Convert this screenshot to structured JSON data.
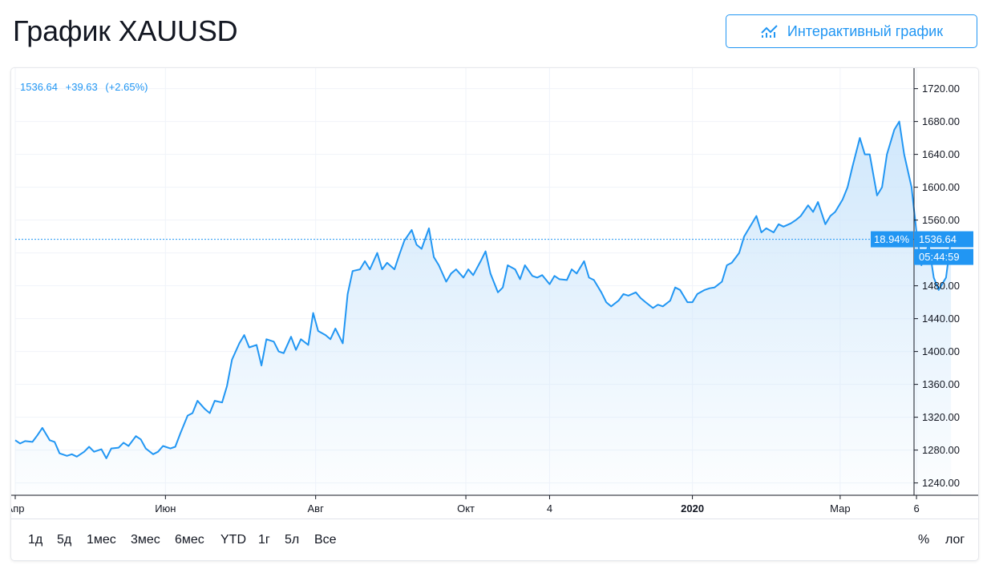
{
  "header": {
    "title": "График XAUUSD",
    "interactive_button_label": "Интерактивный график"
  },
  "legend": {
    "price": "1536.64",
    "change": "+39.63",
    "change_pct": "(+2.65%)"
  },
  "price_tag": {
    "percent": "18.94%",
    "price": "1536.64",
    "countdown": "05:44:59"
  },
  "range_buttons": [
    "1д",
    "5д",
    "1мес",
    "3мес",
    "6мес",
    "YTD",
    "1г",
    "5л",
    "Все"
  ],
  "scale_buttons": [
    "%",
    "лог"
  ],
  "colors": {
    "accent": "#2196f3",
    "line": "#2196f3",
    "area_top": "#cde6fb",
    "grid": "#f0f3fa"
  },
  "chart_data": {
    "type": "area",
    "symbol": "XAUUSD",
    "ylim": [
      1225,
      1745
    ],
    "yticks": [
      1240,
      1280,
      1320,
      1360,
      1400,
      1440,
      1480,
      1520,
      1560,
      1600,
      1640,
      1680,
      1720
    ],
    "ytick_labels": [
      "1240.00",
      "1280.00",
      "1320.00",
      "1360.00",
      "1400.00",
      "1440.00",
      "1480.00",
      "1520.00",
      "1560.00",
      "1600.00",
      "1640.00",
      "1680.00",
      "1720.00"
    ],
    "xlim": [
      "2019-04-01",
      "2020-03-31"
    ],
    "xticks": [
      {
        "date": "2019-04-01",
        "label": "Апр"
      },
      {
        "date": "2019-06-01",
        "label": "Июн"
      },
      {
        "date": "2019-08-01",
        "label": "Авг"
      },
      {
        "date": "2019-10-01",
        "label": "Окт"
      },
      {
        "date": "2019-11-04",
        "label": "4"
      },
      {
        "date": "2020-01-01",
        "label": "2020"
      },
      {
        "date": "2020-03-01",
        "label": "Мар"
      },
      {
        "date": "2020-04-01",
        "label": "6"
      }
    ],
    "last_price": 1536.64,
    "grid": true,
    "legend_position": "top-left",
    "series": [
      {
        "values": [
          [
            "2019-04-01",
            1292
          ],
          [
            "2019-04-03",
            1288
          ],
          [
            "2019-04-05",
            1291
          ],
          [
            "2019-04-08",
            1290
          ],
          [
            "2019-04-10",
            1298
          ],
          [
            "2019-04-12",
            1307
          ],
          [
            "2019-04-15",
            1292
          ],
          [
            "2019-04-17",
            1290
          ],
          [
            "2019-04-19",
            1276
          ],
          [
            "2019-04-22",
            1273
          ],
          [
            "2019-04-24",
            1275
          ],
          [
            "2019-04-26",
            1272
          ],
          [
            "2019-04-29",
            1278
          ],
          [
            "2019-05-01",
            1284
          ],
          [
            "2019-05-03",
            1278
          ],
          [
            "2019-05-06",
            1281
          ],
          [
            "2019-05-08",
            1270
          ],
          [
            "2019-05-10",
            1282
          ],
          [
            "2019-05-13",
            1283
          ],
          [
            "2019-05-15",
            1289
          ],
          [
            "2019-05-17",
            1285
          ],
          [
            "2019-05-20",
            1297
          ],
          [
            "2019-05-22",
            1293
          ],
          [
            "2019-05-24",
            1282
          ],
          [
            "2019-05-27",
            1275
          ],
          [
            "2019-05-29",
            1278
          ],
          [
            "2019-05-31",
            1285
          ],
          [
            "2019-06-03",
            1282
          ],
          [
            "2019-06-05",
            1284
          ],
          [
            "2019-06-07",
            1300
          ],
          [
            "2019-06-10",
            1322
          ],
          [
            "2019-06-12",
            1325
          ],
          [
            "2019-06-14",
            1340
          ],
          [
            "2019-06-17",
            1330
          ],
          [
            "2019-06-19",
            1325
          ],
          [
            "2019-06-21",
            1340
          ],
          [
            "2019-06-24",
            1338
          ],
          [
            "2019-06-26",
            1358
          ],
          [
            "2019-06-28",
            1390
          ],
          [
            "2019-07-01",
            1410
          ],
          [
            "2019-07-03",
            1420
          ],
          [
            "2019-07-05",
            1405
          ],
          [
            "2019-07-08",
            1408
          ],
          [
            "2019-07-10",
            1383
          ],
          [
            "2019-07-12",
            1415
          ],
          [
            "2019-07-15",
            1412
          ],
          [
            "2019-07-17",
            1400
          ],
          [
            "2019-07-19",
            1398
          ],
          [
            "2019-07-22",
            1418
          ],
          [
            "2019-07-24",
            1402
          ],
          [
            "2019-07-26",
            1415
          ],
          [
            "2019-07-29",
            1408
          ],
          [
            "2019-07-31",
            1447
          ],
          [
            "2019-08-02",
            1425
          ],
          [
            "2019-08-05",
            1420
          ],
          [
            "2019-08-07",
            1415
          ],
          [
            "2019-08-09",
            1428
          ],
          [
            "2019-08-12",
            1410
          ],
          [
            "2019-08-14",
            1470
          ],
          [
            "2019-08-16",
            1498
          ],
          [
            "2019-08-19",
            1500
          ],
          [
            "2019-08-21",
            1510
          ],
          [
            "2019-08-23",
            1500
          ],
          [
            "2019-08-26",
            1520
          ],
          [
            "2019-08-28",
            1500
          ],
          [
            "2019-08-30",
            1508
          ],
          [
            "2019-09-02",
            1500
          ],
          [
            "2019-09-04",
            1518
          ],
          [
            "2019-09-06",
            1535
          ],
          [
            "2019-09-09",
            1548
          ],
          [
            "2019-09-11",
            1530
          ],
          [
            "2019-09-13",
            1525
          ],
          [
            "2019-09-16",
            1550
          ],
          [
            "2019-09-18",
            1515
          ],
          [
            "2019-09-20",
            1505
          ],
          [
            "2019-09-23",
            1485
          ],
          [
            "2019-09-25",
            1495
          ],
          [
            "2019-09-27",
            1500
          ],
          [
            "2019-09-30",
            1490
          ],
          [
            "2019-10-02",
            1500
          ],
          [
            "2019-10-04",
            1493
          ],
          [
            "2019-10-07",
            1510
          ],
          [
            "2019-10-09",
            1522
          ],
          [
            "2019-10-11",
            1495
          ],
          [
            "2019-10-14",
            1472
          ],
          [
            "2019-10-16",
            1478
          ],
          [
            "2019-10-18",
            1505
          ],
          [
            "2019-10-21",
            1500
          ],
          [
            "2019-10-23",
            1488
          ],
          [
            "2019-10-25",
            1505
          ],
          [
            "2019-10-28",
            1492
          ],
          [
            "2019-10-30",
            1490
          ],
          [
            "2019-11-01",
            1493
          ],
          [
            "2019-11-04",
            1482
          ],
          [
            "2019-11-06",
            1492
          ],
          [
            "2019-11-08",
            1488
          ],
          [
            "2019-11-11",
            1487
          ],
          [
            "2019-11-13",
            1500
          ],
          [
            "2019-11-15",
            1495
          ],
          [
            "2019-11-18",
            1510
          ],
          [
            "2019-11-20",
            1490
          ],
          [
            "2019-11-22",
            1487
          ],
          [
            "2019-11-25",
            1472
          ],
          [
            "2019-11-27",
            1460
          ],
          [
            "2019-11-29",
            1455
          ],
          [
            "2019-12-02",
            1462
          ],
          [
            "2019-12-04",
            1470
          ],
          [
            "2019-12-06",
            1468
          ],
          [
            "2019-12-09",
            1472
          ],
          [
            "2019-12-11",
            1465
          ],
          [
            "2019-12-13",
            1460
          ],
          [
            "2019-12-16",
            1453
          ],
          [
            "2019-12-18",
            1457
          ],
          [
            "2019-12-20",
            1455
          ],
          [
            "2019-12-23",
            1462
          ],
          [
            "2019-12-25",
            1478
          ],
          [
            "2019-12-27",
            1475
          ],
          [
            "2019-12-30",
            1460
          ],
          [
            "2020-01-01",
            1460
          ],
          [
            "2020-01-03",
            1470
          ],
          [
            "2020-01-06",
            1475
          ],
          [
            "2020-01-08",
            1477
          ],
          [
            "2020-01-10",
            1478
          ],
          [
            "2020-01-13",
            1485
          ],
          [
            "2020-01-15",
            1505
          ],
          [
            "2020-01-17",
            1508
          ],
          [
            "2020-01-20",
            1520
          ],
          [
            "2020-01-22",
            1540
          ],
          [
            "2020-01-24",
            1550
          ],
          [
            "2020-01-27",
            1565
          ],
          [
            "2020-01-29",
            1545
          ],
          [
            "2020-01-31",
            1550
          ],
          [
            "2020-02-03",
            1545
          ],
          [
            "2020-02-05",
            1555
          ],
          [
            "2020-02-07",
            1552
          ],
          [
            "2020-02-10",
            1556
          ],
          [
            "2020-02-12",
            1560
          ],
          [
            "2020-02-14",
            1565
          ],
          [
            "2020-02-17",
            1578
          ],
          [
            "2020-02-19",
            1570
          ],
          [
            "2020-02-21",
            1582
          ],
          [
            "2020-02-24",
            1555
          ],
          [
            "2020-02-26",
            1565
          ],
          [
            "2020-02-28",
            1570
          ],
          [
            "2020-03-02",
            1585
          ],
          [
            "2020-03-04",
            1600
          ],
          [
            "2020-03-06",
            1625
          ],
          [
            "2020-03-09",
            1660
          ],
          [
            "2020-03-11",
            1640
          ],
          [
            "2020-03-13",
            1640
          ],
          [
            "2020-03-16",
            1590
          ],
          [
            "2020-03-18",
            1600
          ],
          [
            "2020-03-20",
            1640
          ],
          [
            "2020-03-23",
            1670
          ],
          [
            "2020-03-25",
            1680
          ],
          [
            "2020-03-27",
            1640
          ],
          [
            "2020-03-30",
            1600
          ],
          [
            "2020-04-01",
            1545
          ],
          [
            "2020-04-03",
            1505
          ],
          [
            "2020-04-06",
            1530
          ],
          [
            "2020-04-08",
            1490
          ],
          [
            "2020-04-10",
            1475
          ],
          [
            "2020-04-13",
            1490
          ],
          [
            "2020-04-15",
            1536.64
          ]
        ]
      }
    ]
  }
}
